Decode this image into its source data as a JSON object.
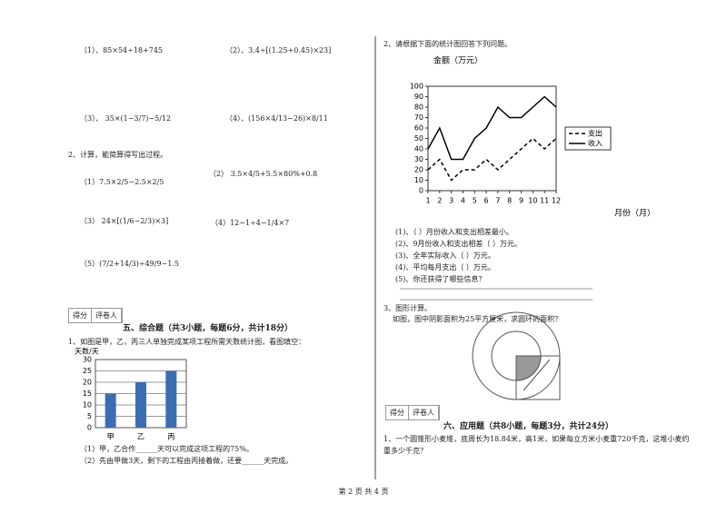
{
  "arith_problems": [
    "（1）、85×54÷18+745",
    "（2）、3.4÷[(1.25+0.45)×23]",
    "（3）、 35×(1−3/7)−5/12",
    "（4）、(156×4/13−26)×8/11"
  ],
  "calc_heading": "2、计算，能简算得写出过程。",
  "calc_problems": [
    "（1）7.5×2/5−2.5×2/5",
    "（2） 3.5×4/5+5.5×80%+0.8",
    "（3） 24×[(1/6−2/3)×3]",
    "（4）12−1÷4−1/4×7",
    "（5）(7/2+14/3)÷49/9−1.5"
  ],
  "score_box": [
    "得分",
    "评卷人"
  ],
  "section5_title": "五、综合题（共3小题，每题6分，共计18分）",
  "q5_1_text": "1、如图是甲，乙，丙三人单独完成某项工程所需天数统计图，看图填空：",
  "q5_1_questions": [
    "（1）甲，乙合作______天可以完成这项工程的75%。",
    "（2）先由甲做3天，剩下的工程由丙接着做，还要______天完成。"
  ],
  "q5_2_text": "2、请根据下面的统计图回答下列问题。",
  "q5_2_questions": [
    "(1)、（ ）月份收入和支出相差最小。",
    "(2)、9月份收入和支出相差（ ）万元。",
    "(3)、全年实际收入（ ）万元。",
    "(4)、平均每月支出（ ）万元。",
    "(5)、你还获得了哪些信息？"
  ],
  "q5_3_heading": "3、图形计算。",
  "q5_3_text": "如图，图中阴影面积为25平方厘米，求圆环的面积？",
  "section6_title": "六、应用题（共8小题，每题3分，共计24分）",
  "q6_1_text": "1、一个圆锥形小麦堆，底周长为18.84米，高1米，如果每立方米小麦重720千克，这堆小麦约重多少千克？",
  "footer": "第 2 页 共 4 页",
  "chart_data": [
    {
      "type": "bar",
      "y_label": "天数/天",
      "categories": [
        "甲",
        "乙",
        "丙"
      ],
      "values": [
        15,
        20,
        25
      ],
      "color": "#3b6db3",
      "ylim": [
        0,
        30
      ],
      "yticks": [
        0,
        5,
        10,
        15,
        20,
        25,
        30
      ],
      "grid": true
    },
    {
      "type": "line",
      "title": "金额（万元）",
      "x_label": "月份（月）",
      "x": [
        1,
        2,
        3,
        4,
        5,
        6,
        7,
        8,
        9,
        10,
        11,
        12
      ],
      "xticks": [
        1,
        2,
        3,
        4,
        5,
        6,
        7,
        8,
        9,
        10,
        11,
        12
      ],
      "xlim": [
        1,
        12
      ],
      "series": [
        {
          "name": "支出",
          "color": "#000000",
          "dashed": true,
          "values": [
            20,
            30,
            10,
            20,
            20,
            30,
            20,
            30,
            40,
            50,
            40,
            50
          ]
        },
        {
          "name": "收入",
          "color": "#000000",
          "dashed": false,
          "values": [
            40,
            60,
            30,
            30,
            50,
            60,
            80,
            70,
            70,
            80,
            90,
            80
          ]
        }
      ],
      "ylim": [
        0,
        100
      ],
      "yticks": [
        0,
        10,
        20,
        30,
        40,
        50,
        60,
        70,
        80,
        90,
        100
      ],
      "grid": false,
      "legend": "right"
    }
  ]
}
